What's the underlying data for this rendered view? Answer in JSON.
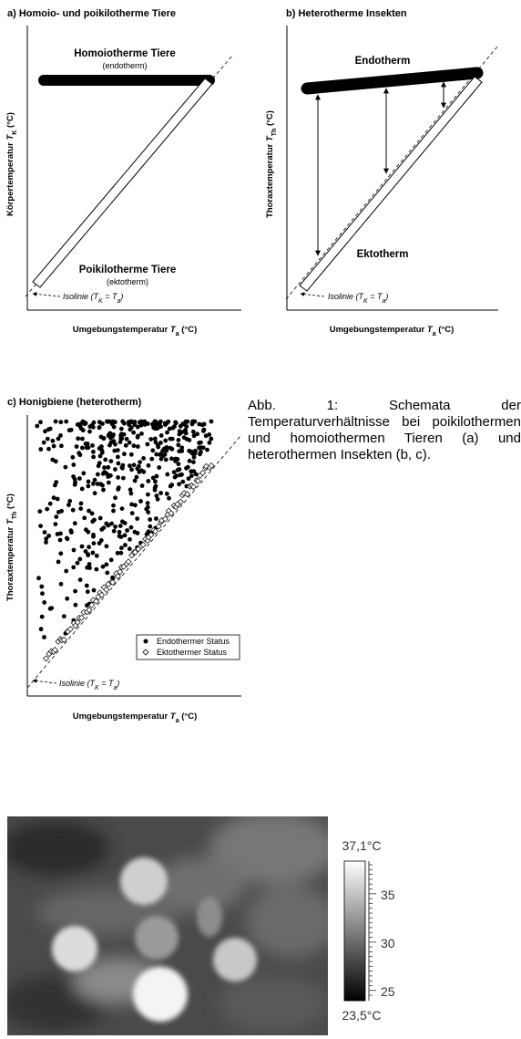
{
  "figure_a": {
    "title": "a) Homoio- und poikilotherme Tiere",
    "y_label": {
      "text": "Körpertemperatur ",
      "var": "T",
      "sub": "K",
      "unit": " (°C)"
    },
    "x_label": {
      "text": "Umgebungstemperatur ",
      "var": "T",
      "sub": "a",
      "unit": " (°C)"
    },
    "upper_label": "Homoiotherme Tiere",
    "upper_note": "(endotherm)",
    "lower_label": "Poikilotherme Tiere",
    "lower_note": "(ektotherm)",
    "isoline": {
      "text": "Isolinie (",
      "var1": "T",
      "sub1": "K",
      "eq": " = ",
      "var2": "T",
      "sub2": "a",
      "close": ")"
    }
  },
  "figure_b": {
    "title": "b) Heterotherme Insekten",
    "y_label": {
      "text": "Thoraxtemperatur ",
      "var": "T",
      "sub": "Th",
      "unit": " (°C)"
    },
    "x_label": {
      "text": "Umgebungstemperatur ",
      "var": "T",
      "sub": "a",
      "unit": " (°C)"
    },
    "upper_label": "Endotherm",
    "lower_label": "Ektotherm",
    "isoline": {
      "text": "Isolinie (",
      "var1": "T",
      "sub1": "K",
      "eq": " = ",
      "var2": "T",
      "sub2": "a",
      "close": ")"
    }
  },
  "figure_c": {
    "title": "c) Honigbiene (heterotherm)",
    "y_label": {
      "text": "Thoraxtemperatur ",
      "var": "T",
      "sub": "Th",
      "unit": " (°C)"
    },
    "x_label": {
      "text": "Umgebungstemperatur ",
      "var": "T",
      "sub": "a",
      "unit": " (°C)"
    },
    "legend": [
      "Endothermer Status",
      "Ektothermer Status"
    ],
    "isoline": {
      "text": "Isolinie (",
      "var1": "T",
      "sub1": "K",
      "eq": " = ",
      "var2": "T",
      "sub2": "a",
      "close": ")"
    }
  },
  "caption": "Abb. 1: Schemata der Temperaturverhältnisse bei poikilothermen und homoiothermen Tieren (a) und heterothermen Insekten (b, c).",
  "thermal_scale": {
    "max": "37,1°C",
    "ticks": [
      35,
      30,
      25
    ],
    "min": "23,5°C"
  }
}
